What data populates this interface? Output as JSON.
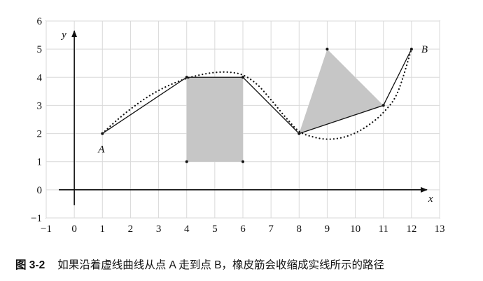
{
  "figure": {
    "number": "图 3-2",
    "caption": "如果沿着虚线曲线从点 A 走到点 B，橡皮筋会收缩成实线所示的路径"
  },
  "chart_data": {
    "type": "diagram",
    "xlim": [
      -1,
      13
    ],
    "ylim": [
      -1,
      6
    ],
    "x_ticks": [
      -1,
      0,
      1,
      2,
      3,
      4,
      5,
      6,
      7,
      8,
      9,
      10,
      11,
      12,
      13
    ],
    "y_ticks": [
      -1,
      0,
      1,
      2,
      3,
      4,
      5,
      6
    ],
    "x_tick_labels": [
      "−1",
      "0",
      "1",
      "2",
      "3",
      "4",
      "5",
      "6",
      "7",
      "8",
      "9",
      "10",
      "11",
      "12",
      "13"
    ],
    "y_tick_labels": [
      "−1",
      "0",
      "1",
      "2",
      "3",
      "4",
      "5",
      "6"
    ],
    "xlabel": "x",
    "ylabel": "y",
    "grid": true,
    "point_labels": [
      {
        "text": "A",
        "x": 1,
        "y": 2
      },
      {
        "text": "B",
        "x": 12,
        "y": 5
      }
    ],
    "solid_path": [
      [
        1,
        2
      ],
      [
        4,
        4
      ],
      [
        6,
        4
      ],
      [
        8,
        2
      ],
      [
        11,
        3
      ],
      [
        12,
        5
      ]
    ],
    "dotted_path": [
      [
        1,
        2
      ],
      [
        1.5,
        2.46
      ],
      [
        2,
        2.87
      ],
      [
        2.5,
        3.23
      ],
      [
        3,
        3.53
      ],
      [
        3.5,
        3.77
      ],
      [
        4,
        3.96
      ],
      [
        4.5,
        4.09
      ],
      [
        5,
        4.17
      ],
      [
        5.5,
        4.18
      ],
      [
        6,
        4.08
      ],
      [
        6.5,
        3.75
      ],
      [
        7,
        3.2
      ],
      [
        7.5,
        2.6
      ],
      [
        8,
        2.08
      ],
      [
        8.5,
        1.88
      ],
      [
        9,
        1.8
      ],
      [
        9.5,
        1.85
      ],
      [
        10,
        2.02
      ],
      [
        10.5,
        2.32
      ],
      [
        11,
        2.75
      ],
      [
        11.5,
        3.45
      ],
      [
        12,
        5
      ]
    ],
    "filled_regions": [
      {
        "name": "rectangle",
        "color": "#c6c6c6",
        "points": [
          [
            4,
            4
          ],
          [
            6,
            4
          ],
          [
            6,
            1
          ],
          [
            4,
            1
          ]
        ]
      },
      {
        "name": "triangle",
        "color": "#c6c6c6",
        "points": [
          [
            8,
            2
          ],
          [
            9,
            5
          ],
          [
            11,
            3
          ]
        ]
      }
    ],
    "vertex_points": [
      [
        1,
        2
      ],
      [
        4,
        4
      ],
      [
        6,
        4
      ],
      [
        8,
        2
      ],
      [
        11,
        3
      ],
      [
        12,
        5
      ],
      [
        4,
        1
      ],
      [
        6,
        1
      ],
      [
        9,
        5
      ]
    ]
  }
}
